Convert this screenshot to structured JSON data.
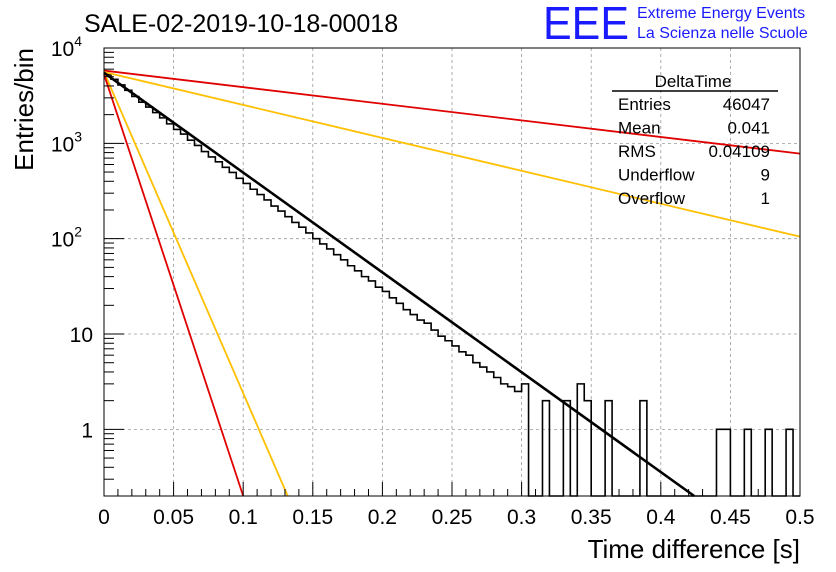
{
  "chart_data": {
    "type": "histogram",
    "title": "SALE-02-2019-10-18-00018",
    "xlabel": "Time difference [s]",
    "ylabel": "Entries/bin",
    "xlim": [
      0,
      0.5
    ],
    "ylim": [
      0.2,
      10000
    ],
    "yscale": "log",
    "grid": true,
    "x_ticks": [
      "0",
      "0.05",
      "0.1",
      "0.15",
      "0.2",
      "0.25",
      "0.3",
      "0.35",
      "0.4",
      "0.45",
      "0.5"
    ],
    "y_ticks": [
      {
        "base": "10",
        "exp": "4",
        "value": 10000
      },
      {
        "base": "10",
        "exp": "3",
        "value": 1000
      },
      {
        "base": "10",
        "exp": "2",
        "value": 100
      },
      {
        "base": "10",
        "exp": "",
        "value": 10
      },
      {
        "base": "1",
        "exp": "",
        "value": 1
      }
    ],
    "bin_width": 0.005,
    "histogram_counts": [
      5300,
      4700,
      4100,
      3600,
      3100,
      2700,
      2400,
      2100,
      1850,
      1600,
      1400,
      1250,
      1080,
      950,
      820,
      720,
      640,
      560,
      495,
      430,
      380,
      330,
      290,
      255,
      220,
      195,
      170,
      148,
      132,
      115,
      100,
      88,
      78,
      68,
      60,
      52,
      46,
      40,
      36,
      31,
      28,
      24,
      21,
      18,
      16,
      14,
      13,
      11,
      9.5,
      8.5,
      7.5,
      6.5,
      6,
      5,
      4.5,
      4,
      3.5,
      3,
      2.8,
      2.5,
      3,
      0.1,
      0.1,
      2,
      0.1,
      0.1,
      2,
      0.1,
      3,
      2,
      0.1,
      0.1,
      2,
      0.1,
      0.1,
      0.1,
      0.1,
      2,
      0.1,
      0.1,
      0.1,
      0.1,
      0.1,
      0.1,
      0.1,
      0.1,
      0.1,
      0.1,
      1,
      1,
      0.1,
      0.1,
      1,
      0.1,
      0.1,
      1,
      0.1,
      0.1,
      1,
      0.1
    ],
    "series": [
      {
        "kind": "fit",
        "color": "#000000",
        "points": [
          [
            0,
            5500
          ],
          [
            0.424,
            0.2
          ]
        ]
      },
      {
        "kind": "band-upper-slow",
        "color": "#e00000",
        "points": [
          [
            0,
            5800
          ],
          [
            0.5,
            780
          ]
        ]
      },
      {
        "kind": "band-lower-slow",
        "color": "#ffc000",
        "points": [
          [
            0,
            5600
          ],
          [
            0.5,
            105
          ]
        ]
      },
      {
        "kind": "band-upper-fast",
        "color": "#ffc000",
        "points": [
          [
            0,
            5600
          ],
          [
            0.132,
            0.2
          ]
        ]
      },
      {
        "kind": "band-lower-fast",
        "color": "#e00000",
        "points": [
          [
            0,
            5300
          ],
          [
            0.1,
            0.2
          ]
        ]
      }
    ]
  },
  "stats_box": {
    "title": "DeltaTime",
    "rows": [
      {
        "label": "Entries",
        "value": "46047"
      },
      {
        "label": "Mean",
        "value": "0.041"
      },
      {
        "label": "RMS",
        "value": "0.04109"
      },
      {
        "label": "Underflow",
        "value": "9"
      },
      {
        "label": "Overflow",
        "value": "1"
      }
    ]
  },
  "logo": {
    "text": "EEE",
    "line1": "Extreme Energy Events",
    "line2": "La Scienza nelle Scuole",
    "color": "#1a1aff"
  }
}
